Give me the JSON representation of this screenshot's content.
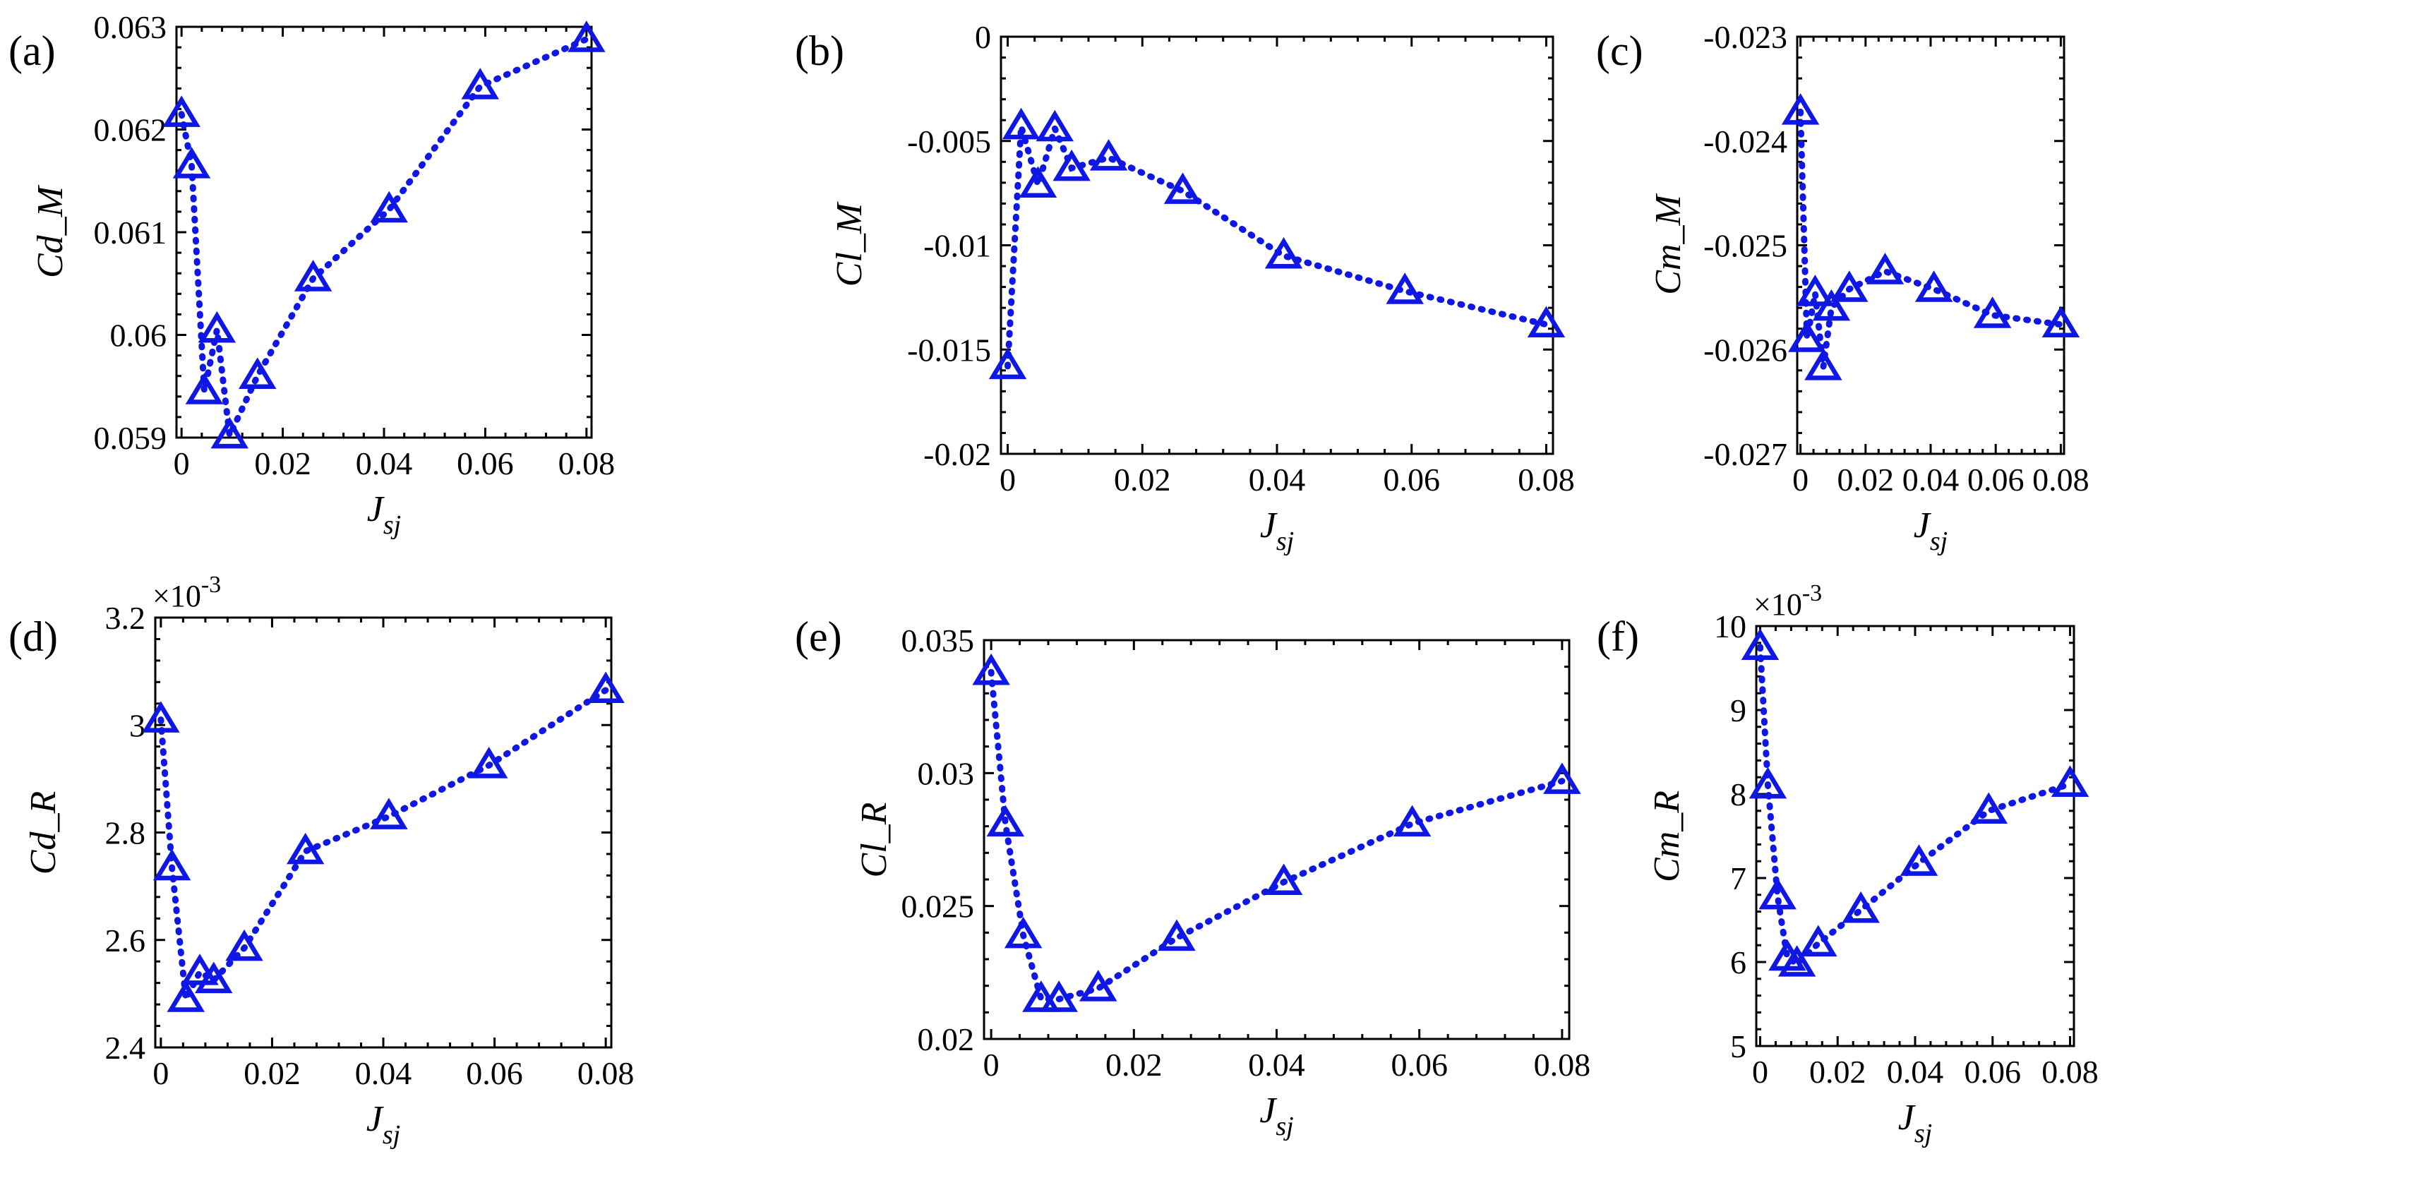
{
  "chart_data": [
    {
      "id": "a",
      "type": "line",
      "panel_label": "(a)",
      "xlabel": "J",
      "xlabel_sub": "sj",
      "ylabel": "Cd_M",
      "exponent": "",
      "xlim": [
        -0.001,
        0.081
      ],
      "ylim": [
        0.059,
        0.063
      ],
      "xticks": [
        0,
        0.02,
        0.04,
        0.06,
        0.08
      ],
      "xtick_labels": [
        "0",
        "0.02",
        "0.04",
        "0.06",
        "0.08"
      ],
      "yticks": [
        0.059,
        0.06,
        0.061,
        0.062,
        0.063
      ],
      "ytick_labels": [
        "0.059",
        "0.06",
        "0.061",
        "0.062",
        "0.063"
      ],
      "x": [
        0,
        0.002,
        0.0045,
        0.007,
        0.0095,
        0.015,
        0.026,
        0.041,
        0.059,
        0.08
      ],
      "y": [
        0.06215,
        0.06165,
        0.05945,
        0.06005,
        0.05902,
        0.0596,
        0.06055,
        0.06122,
        0.06242,
        0.06288
      ]
    },
    {
      "id": "b",
      "type": "line",
      "panel_label": "(b)",
      "xlabel": "J",
      "xlabel_sub": "sj",
      "ylabel": "Cl_M",
      "exponent": "",
      "xlim": [
        -0.001,
        0.081
      ],
      "ylim": [
        -0.02,
        0
      ],
      "xticks": [
        0,
        0.02,
        0.04,
        0.06,
        0.08
      ],
      "xtick_labels": [
        "0",
        "0.02",
        "0.04",
        "0.06",
        "0.08"
      ],
      "yticks": [
        -0.02,
        -0.015,
        -0.01,
        -0.005,
        0
      ],
      "ytick_labels": [
        "-0.02",
        "-0.015",
        "-0.01",
        "-0.005",
        "0"
      ],
      "x": [
        0,
        0.002,
        0.0045,
        0.007,
        0.0095,
        0.015,
        0.026,
        0.041,
        0.059,
        0.08
      ],
      "y": [
        -0.0158,
        -0.0043,
        -0.0071,
        -0.0044,
        -0.0063,
        -0.0058,
        -0.0074,
        -0.0105,
        -0.0122,
        -0.0138
      ]
    },
    {
      "id": "c",
      "type": "line",
      "panel_label": "(c)",
      "xlabel": "J",
      "xlabel_sub": "sj",
      "ylabel": "Cm_M",
      "exponent": "",
      "xlim": [
        -0.001,
        0.081
      ],
      "ylim": [
        -0.027,
        -0.023
      ],
      "xticks": [
        0,
        0.02,
        0.04,
        0.06,
        0.08
      ],
      "xtick_labels": [
        "0",
        "0.02",
        "0.04",
        "0.06",
        "0.08"
      ],
      "yticks": [
        -0.027,
        -0.026,
        -0.025,
        -0.024,
        -0.023
      ],
      "ytick_labels": [
        "-0.027",
        "-0.026",
        "-0.025",
        "-0.024",
        "-0.023"
      ],
      "x": [
        0,
        0.002,
        0.0045,
        0.007,
        0.0095,
        0.015,
        0.026,
        0.041,
        0.059,
        0.08
      ],
      "y": [
        -0.02372,
        -0.0259,
        -0.02546,
        -0.02617,
        -0.0256,
        -0.02542,
        -0.02525,
        -0.02542,
        -0.02567,
        -0.02576
      ]
    },
    {
      "id": "d",
      "type": "line",
      "panel_label": "(d)",
      "xlabel": "J",
      "xlabel_sub": "sj",
      "ylabel": "Cd_R",
      "exponent": "×10-3",
      "xlim": [
        -0.001,
        0.081
      ],
      "ylim": [
        2.4,
        3.2
      ],
      "xticks": [
        0,
        0.02,
        0.04,
        0.06,
        0.08
      ],
      "xtick_labels": [
        "0",
        "0.02",
        "0.04",
        "0.06",
        "0.08"
      ],
      "yticks": [
        2.4,
        2.6,
        2.8,
        3.0,
        3.2
      ],
      "ytick_labels": [
        "2.4",
        "2.6",
        "2.8",
        "3",
        "3.2"
      ],
      "x": [
        0,
        0.002,
        0.0045,
        0.007,
        0.0095,
        0.015,
        0.026,
        0.041,
        0.059,
        0.08
      ],
      "y": [
        3.01,
        2.735,
        2.49,
        2.54,
        2.525,
        2.585,
        2.765,
        2.83,
        2.925,
        3.065
      ]
    },
    {
      "id": "e",
      "type": "line",
      "panel_label": "(e)",
      "xlabel": "J",
      "xlabel_sub": "sj",
      "ylabel": "Cl_R",
      "exponent": "",
      "xlim": [
        -0.001,
        0.081
      ],
      "ylim": [
        0.02,
        0.035
      ],
      "xticks": [
        0,
        0.02,
        0.04,
        0.06,
        0.08
      ],
      "xtick_labels": [
        "0",
        "0.02",
        "0.04",
        "0.06",
        "0.08"
      ],
      "yticks": [
        0.02,
        0.025,
        0.03,
        0.035
      ],
      "ytick_labels": [
        "0.02",
        "0.025",
        "0.03",
        "0.035"
      ],
      "x": [
        0,
        0.002,
        0.0045,
        0.007,
        0.0095,
        0.015,
        0.026,
        0.041,
        0.059,
        0.08
      ],
      "y": [
        0.0338,
        0.0281,
        0.0239,
        0.0215,
        0.0215,
        0.0219,
        0.0238,
        0.0259,
        0.0281,
        0.0297
      ]
    },
    {
      "id": "f",
      "type": "line",
      "panel_label": "(f)",
      "xlabel": "J",
      "xlabel_sub": "sj",
      "ylabel": "Cm_R",
      "exponent": "×10-3",
      "xlim": [
        -0.001,
        0.081
      ],
      "ylim": [
        5,
        10
      ],
      "xticks": [
        0,
        0.02,
        0.04,
        0.06,
        0.08
      ],
      "xtick_labels": [
        "0",
        "0.02",
        "0.04",
        "0.06",
        "0.08"
      ],
      "yticks": [
        5,
        6,
        7,
        8,
        9,
        10
      ],
      "ytick_labels": [
        "5",
        "6",
        "7",
        "8",
        "9",
        "10"
      ],
      "x": [
        0,
        0.002,
        0.0045,
        0.007,
        0.0095,
        0.015,
        0.026,
        0.041,
        0.059,
        0.08
      ],
      "y": [
        9.75,
        8.1,
        6.78,
        6.05,
        5.98,
        6.22,
        6.62,
        7.18,
        7.8,
        8.12
      ]
    }
  ],
  "colors": {
    "series": "#0f17e6",
    "axis": "#000000",
    "background": "#ffffff"
  }
}
